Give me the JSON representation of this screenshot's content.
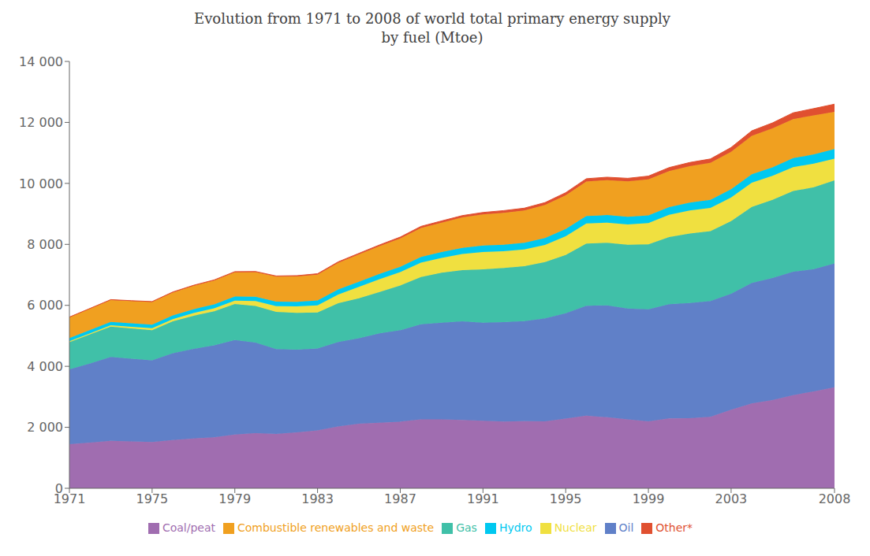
{
  "chart_data": {
    "type": "area",
    "title": "Evolution from 1971 to 2008 of world total primary energy supply\nby fuel (Mtoe)",
    "stacked": true,
    "grid": false,
    "legend": "bottom",
    "x": [
      1971,
      1972,
      1973,
      1974,
      1975,
      1976,
      1977,
      1978,
      1979,
      1980,
      1981,
      1982,
      1983,
      1984,
      1985,
      1986,
      1987,
      1988,
      1989,
      1990,
      1991,
      1992,
      1993,
      1994,
      1995,
      1996,
      1997,
      1998,
      1999,
      2000,
      2001,
      2002,
      2003,
      2004,
      2005,
      2006,
      2007,
      2008
    ],
    "xlim": [
      1971,
      2008
    ],
    "xticks": [
      1971,
      1975,
      1979,
      1983,
      1987,
      1991,
      1995,
      1999,
      2003,
      2008
    ],
    "ylim": [
      0,
      14000
    ],
    "yticks": [
      0,
      {
        "value": 2000,
        "label": "2 000"
      },
      {
        "value": 4000,
        "label": "4 000"
      },
      {
        "value": 6000,
        "label": "6 000"
      },
      {
        "value": 8000,
        "label": "8 000"
      },
      {
        "value": 10000,
        "label": "10 000"
      },
      {
        "value": 12000,
        "label": "12 000"
      },
      {
        "value": 14000,
        "label": "14 000"
      }
    ],
    "series": [
      {
        "name": "Coal/peat",
        "color": "#a06db0",
        "values": [
          1449,
          1499,
          1554,
          1536,
          1516,
          1581,
          1637,
          1671,
          1762,
          1806,
          1780,
          1836,
          1898,
          2025,
          2118,
          2152,
          2185,
          2261,
          2260,
          2244,
          2213,
          2188,
          2199,
          2198,
          2284,
          2384,
          2329,
          2260,
          2194,
          2295,
          2302,
          2344,
          2578,
          2784,
          2894,
          3053,
          3179,
          3315
        ]
      },
      {
        "name": "Oil",
        "color": "#6080c8",
        "values": [
          2450,
          2598,
          2754,
          2710,
          2684,
          2852,
          2937,
          3014,
          3098,
          2972,
          2787,
          2710,
          2684,
          2772,
          2801,
          2928,
          2999,
          3115,
          3171,
          3232,
          3218,
          3261,
          3282,
          3378,
          3458,
          3605,
          3669,
          3638,
          3676,
          3741,
          3773,
          3799,
          3801,
          3953,
          4000,
          4052,
          4007,
          4059
        ]
      },
      {
        "name": "Gas",
        "color": "#40c0a8",
        "values": [
          895,
          951,
          994,
          995,
          985,
          1040,
          1086,
          1119,
          1183,
          1200,
          1218,
          1206,
          1183,
          1272,
          1310,
          1361,
          1468,
          1555,
          1637,
          1680,
          1752,
          1780,
          1800,
          1845,
          1907,
          2038,
          2057,
          2089,
          2130,
          2207,
          2280,
          2292,
          2381,
          2488,
          2566,
          2643,
          2688,
          2726
        ]
      },
      {
        "name": "Nuclear",
        "color": "#f0e040",
        "values": [
          29,
          36,
          46,
          57,
          66,
          77,
          89,
          99,
          114,
          161,
          186,
          213,
          234,
          287,
          378,
          414,
          436,
          467,
          487,
          526,
          567,
          546,
          554,
          561,
          617,
          659,
          658,
          664,
          700,
          726,
          755,
          761,
          775,
          796,
          786,
          786,
          776,
          712
        ]
      },
      {
        "name": "Hydro",
        "color": "#00c8f0",
        "values": [
          104,
          108,
          109,
          114,
          118,
          121,
          124,
          130,
          133,
          141,
          148,
          152,
          161,
          167,
          169,
          176,
          179,
          188,
          192,
          202,
          210,
          213,
          219,
          225,
          237,
          242,
          247,
          253,
          253,
          255,
          259,
          267,
          272,
          280,
          283,
          293,
          302,
          313
        ]
      },
      {
        "name": "Combustible renewables and waste",
        "color": "#f0a020",
        "values": [
          676,
          695,
          716,
          726,
          740,
          751,
          767,
          782,
          795,
          808,
          820,
          830,
          848,
          872,
          893,
          911,
          927,
          953,
          967,
          1000,
          1020,
          1049,
          1060,
          1085,
          1109,
          1136,
          1147,
          1162,
          1180,
          1181,
          1196,
          1209,
          1227,
          1256,
          1273,
          1284,
          1279,
          1224
        ]
      },
      {
        "name": "Other*",
        "color": "#e05030",
        "values": [
          13,
          14,
          15,
          15,
          16,
          17,
          18,
          19,
          21,
          22,
          25,
          27,
          29,
          33,
          37,
          41,
          46,
          51,
          55,
          60,
          67,
          70,
          74,
          79,
          84,
          90,
          96,
          101,
          106,
          114,
          121,
          130,
          144,
          167,
          182,
          204,
          224,
          250
        ]
      }
    ]
  }
}
